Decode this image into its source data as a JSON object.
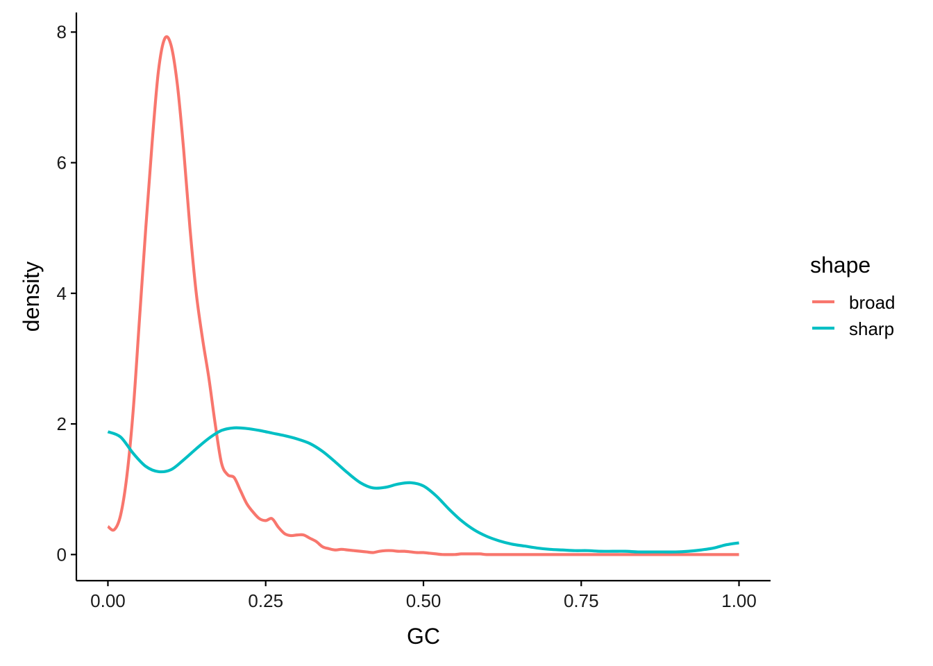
{
  "chart_data": {
    "type": "line",
    "title": "",
    "xlabel": "GC",
    "ylabel": "density",
    "xlim": [
      -0.05,
      1.05
    ],
    "ylim": [
      -0.4,
      8.3
    ],
    "x_ticks": [
      {
        "value": 0.0,
        "label": "0.00"
      },
      {
        "value": 0.25,
        "label": "0.25"
      },
      {
        "value": 0.5,
        "label": "0.50"
      },
      {
        "value": 0.75,
        "label": "0.75"
      },
      {
        "value": 1.0,
        "label": "1.00"
      }
    ],
    "y_ticks": [
      {
        "value": 0,
        "label": "0"
      },
      {
        "value": 2,
        "label": "2"
      },
      {
        "value": 4,
        "label": "4"
      },
      {
        "value": 6,
        "label": "6"
      },
      {
        "value": 8,
        "label": "8"
      }
    ],
    "grid": false,
    "legend": {
      "title": "shape",
      "position": "right"
    },
    "series": [
      {
        "name": "broad",
        "color": "#F8766D",
        "x": [
          0.0,
          0.01,
          0.02,
          0.03,
          0.04,
          0.05,
          0.06,
          0.07,
          0.08,
          0.09,
          0.1,
          0.11,
          0.12,
          0.13,
          0.14,
          0.15,
          0.16,
          0.17,
          0.18,
          0.19,
          0.2,
          0.21,
          0.22,
          0.23,
          0.24,
          0.25,
          0.26,
          0.27,
          0.28,
          0.29,
          0.3,
          0.31,
          0.32,
          0.33,
          0.34,
          0.35,
          0.36,
          0.37,
          0.38,
          0.39,
          0.4,
          0.41,
          0.42,
          0.43,
          0.44,
          0.45,
          0.46,
          0.47,
          0.48,
          0.49,
          0.5,
          0.51,
          0.52,
          0.53,
          0.54,
          0.55,
          0.56,
          0.57,
          0.58,
          0.59,
          0.6,
          0.62,
          0.64,
          0.66,
          0.68,
          0.7,
          0.75,
          0.8,
          0.85,
          0.9,
          0.95,
          1.0
        ],
        "y": [
          0.43,
          0.38,
          0.6,
          1.2,
          2.2,
          3.6,
          5.0,
          6.3,
          7.4,
          7.9,
          7.8,
          7.2,
          6.2,
          5.0,
          4.0,
          3.3,
          2.7,
          2.0,
          1.4,
          1.22,
          1.18,
          0.98,
          0.78,
          0.65,
          0.55,
          0.52,
          0.55,
          0.42,
          0.32,
          0.29,
          0.3,
          0.3,
          0.25,
          0.2,
          0.12,
          0.09,
          0.07,
          0.08,
          0.07,
          0.06,
          0.05,
          0.04,
          0.03,
          0.05,
          0.06,
          0.06,
          0.05,
          0.05,
          0.04,
          0.03,
          0.03,
          0.02,
          0.01,
          0.0,
          0.0,
          0.0,
          0.01,
          0.01,
          0.01,
          0.01,
          0.0,
          0.0,
          0.0,
          0.0,
          0.0,
          0.0,
          0.0,
          0.0,
          0.0,
          0.0,
          0.0,
          0.0
        ]
      },
      {
        "name": "sharp",
        "color": "#00BFC4",
        "x": [
          0.0,
          0.02,
          0.04,
          0.06,
          0.08,
          0.1,
          0.12,
          0.14,
          0.16,
          0.18,
          0.2,
          0.22,
          0.24,
          0.26,
          0.28,
          0.3,
          0.32,
          0.34,
          0.36,
          0.38,
          0.4,
          0.42,
          0.44,
          0.46,
          0.48,
          0.5,
          0.52,
          0.54,
          0.56,
          0.58,
          0.6,
          0.62,
          0.64,
          0.66,
          0.68,
          0.7,
          0.72,
          0.74,
          0.76,
          0.78,
          0.8,
          0.82,
          0.84,
          0.86,
          0.88,
          0.9,
          0.92,
          0.94,
          0.96,
          0.98,
          1.0
        ],
        "y": [
          1.88,
          1.8,
          1.55,
          1.35,
          1.27,
          1.3,
          1.45,
          1.62,
          1.78,
          1.9,
          1.94,
          1.93,
          1.9,
          1.86,
          1.82,
          1.77,
          1.7,
          1.58,
          1.42,
          1.25,
          1.1,
          1.02,
          1.03,
          1.08,
          1.1,
          1.05,
          0.9,
          0.7,
          0.52,
          0.38,
          0.28,
          0.21,
          0.16,
          0.13,
          0.1,
          0.08,
          0.07,
          0.06,
          0.06,
          0.05,
          0.05,
          0.05,
          0.04,
          0.04,
          0.04,
          0.04,
          0.05,
          0.07,
          0.1,
          0.15,
          0.18
        ]
      }
    ]
  }
}
